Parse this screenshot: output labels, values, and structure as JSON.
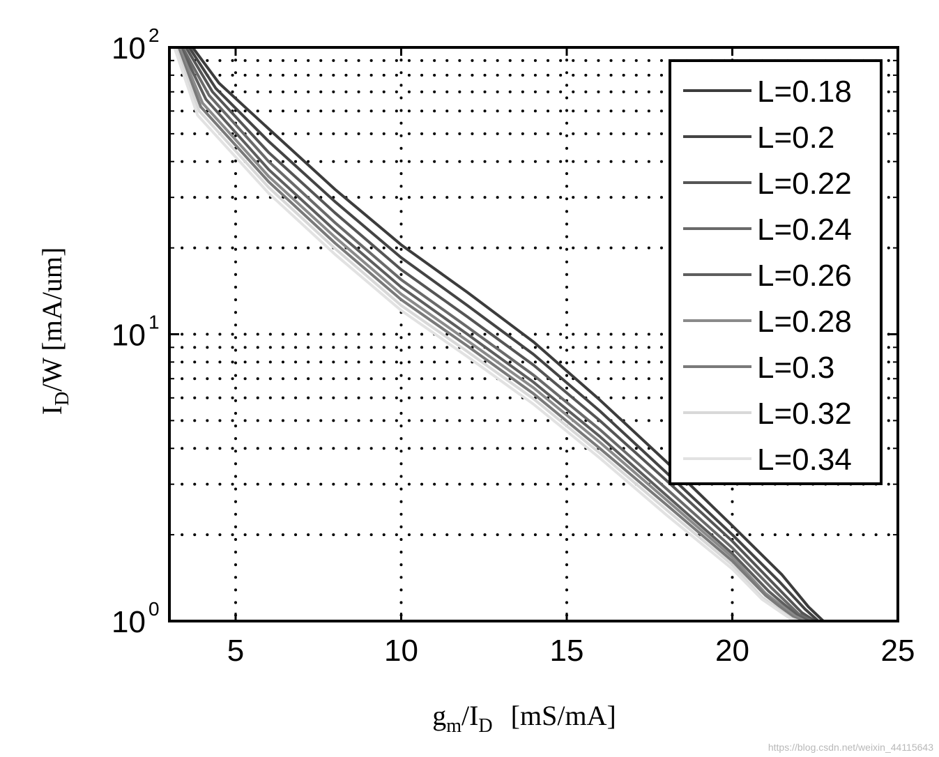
{
  "chart_data": {
    "type": "line",
    "title": "",
    "xlabel": {
      "main": "g",
      "sub1": "m",
      "mid": "/I",
      "sub2": "D",
      "units": "[mS/mA]"
    },
    "ylabel": {
      "main": "I",
      "sub": "D",
      "rest": "/W [mA/um]"
    },
    "xlim": [
      3,
      25
    ],
    "ylim": [
      1,
      100
    ],
    "yscale": "log",
    "grid": true,
    "legend_position": "top-right",
    "x_ticks": [
      5,
      10,
      15,
      20,
      25
    ],
    "x_tick_labels": [
      "5",
      "10",
      "15",
      "20",
      "25"
    ],
    "y_ticks": [
      {
        "value": 1,
        "base": "10",
        "exp": "0"
      },
      {
        "value": 10,
        "base": "10",
        "exp": "1"
      },
      {
        "value": 100,
        "base": "10",
        "exp": "2"
      }
    ],
    "series": [
      {
        "name": "L=0.18",
        "color": "#3c3c3c",
        "x": [
          3.7,
          4.5,
          6,
          8,
          10,
          12,
          14,
          16,
          18,
          20,
          21.5,
          22.3,
          22.75
        ],
        "y": [
          100,
          75,
          52,
          32,
          20.5,
          14,
          9.4,
          5.9,
          3.6,
          2.15,
          1.45,
          1.12,
          1.0
        ]
      },
      {
        "name": "L=0.2",
        "color": "#444444",
        "x": [
          3.6,
          4.4,
          6,
          8,
          10,
          12,
          14,
          16,
          18,
          20,
          21.4,
          22.2,
          22.6
        ],
        "y": [
          100,
          72,
          47,
          29,
          18.5,
          12.6,
          8.5,
          5.4,
          3.3,
          2.0,
          1.38,
          1.1,
          1.0
        ]
      },
      {
        "name": "L=0.22",
        "color": "#555555",
        "x": [
          3.5,
          4.3,
          6,
          8,
          10,
          12,
          14,
          16,
          18,
          20,
          21.3,
          22.1,
          22.5
        ],
        "y": [
          100,
          70,
          43,
          26.5,
          16.8,
          11.5,
          7.8,
          5.0,
          3.1,
          1.9,
          1.33,
          1.07,
          1.0
        ]
      },
      {
        "name": "L=0.24",
        "color": "#6a6a6a",
        "x": [
          3.4,
          4.2,
          6,
          8,
          10,
          12,
          14,
          16,
          18,
          20,
          21.2,
          22.0,
          22.4
        ],
        "y": [
          100,
          68,
          40,
          24.5,
          15.5,
          10.6,
          7.2,
          4.65,
          2.9,
          1.8,
          1.3,
          1.06,
          1.0
        ]
      },
      {
        "name": "L=0.26",
        "color": "#5e5e5e",
        "x": [
          3.35,
          4.1,
          6,
          8,
          10,
          12,
          14,
          16,
          18,
          20,
          21.1,
          21.95,
          22.3
        ],
        "y": [
          100,
          66,
          37.5,
          23,
          14.6,
          10.0,
          6.8,
          4.4,
          2.75,
          1.72,
          1.27,
          1.05,
          1.0
        ]
      },
      {
        "name": "L=0.28",
        "color": "#8a8a8a",
        "x": [
          3.3,
          4.0,
          6,
          8,
          10,
          12,
          14,
          16,
          18,
          20,
          21.0,
          21.9,
          22.2
        ],
        "y": [
          100,
          64,
          35.5,
          21.8,
          13.8,
          9.5,
          6.5,
          4.2,
          2.65,
          1.67,
          1.25,
          1.04,
          1.0
        ]
      },
      {
        "name": "L=0.3",
        "color": "#7a7a7a",
        "x": [
          3.25,
          3.95,
          6,
          8,
          10,
          12,
          14,
          16,
          18,
          20,
          21.0,
          21.85,
          22.1
        ],
        "y": [
          100,
          62,
          34,
          20.8,
          13.2,
          9.1,
          6.2,
          4.0,
          2.55,
          1.62,
          1.23,
          1.03,
          1.0
        ]
      },
      {
        "name": "L=0.32",
        "color": "#d8d8d8",
        "x": [
          3.2,
          3.9,
          6,
          8,
          10,
          12,
          14,
          16,
          18,
          20,
          20.9,
          21.8,
          22.0
        ],
        "y": [
          100,
          60,
          32.5,
          19.9,
          12.6,
          8.7,
          5.95,
          3.85,
          2.45,
          1.57,
          1.21,
          1.02,
          1.0
        ]
      },
      {
        "name": "L=0.34",
        "color": "#e2e2e2",
        "x": [
          3.15,
          3.85,
          6,
          8,
          10,
          12,
          14,
          16,
          18,
          20,
          20.9,
          21.75,
          21.9
        ],
        "y": [
          100,
          58,
          31,
          19.0,
          12.1,
          8.35,
          5.7,
          3.7,
          2.35,
          1.52,
          1.19,
          1.02,
          1.0
        ]
      }
    ]
  },
  "watermark": "https://blog.csdn.net/weixin_44115643"
}
